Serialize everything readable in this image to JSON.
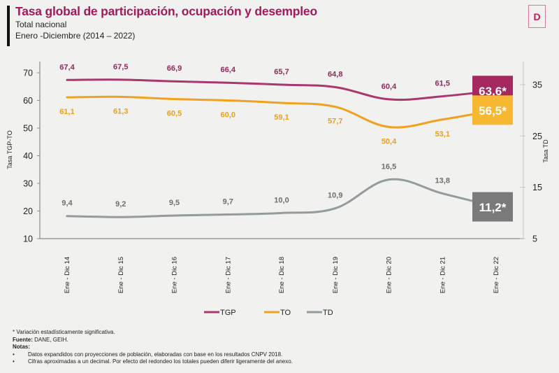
{
  "header": {
    "title": "Tasa global de participación, ocupación y desempleo",
    "subtitle_1": "Total nacional",
    "subtitle_2": "Enero -Diciembre (2014 – 2022)",
    "logo_letter": "D",
    "logo_icon": "dane-logo-icon"
  },
  "colors": {
    "TGP": "#a8386e",
    "TO": "#f0a21e",
    "TD": "#939c9b",
    "box_TGP": "#a5285f",
    "box_TO": "#f7b731",
    "box_TD": "#7a7a7a",
    "title": "#a3195b"
  },
  "chart_data": {
    "type": "line",
    "title": "Tasa global de participación, ocupación y desempleo",
    "categories": [
      "Ene - Dic 14",
      "Ene - Dic 15",
      "Ene - Dic 16",
      "Ene - Dic 17",
      "Ene - Dic 18",
      "Ene - Dic 19",
      "Ene - Dic 20",
      "Ene - Dic 21",
      "Ene - Dic 22"
    ],
    "series": [
      {
        "name": "TGP",
        "axis": "left",
        "values": [
          67.4,
          67.5,
          66.9,
          66.4,
          65.7,
          64.8,
          60.4,
          61.5,
          63.6
        ],
        "labels": [
          "67,4",
          "67,5",
          "66,9",
          "66,4",
          "65,7",
          "64,8",
          "60,4",
          "61,5",
          "63,6*"
        ]
      },
      {
        "name": "TO",
        "axis": "left",
        "values": [
          61.1,
          61.3,
          60.5,
          60.0,
          59.1,
          57.7,
          50.4,
          53.1,
          56.5
        ],
        "labels": [
          "61,1",
          "61,3",
          "60,5",
          "60,0",
          "59,1",
          "57,7",
          "50,4",
          "53,1",
          "56,5*"
        ]
      },
      {
        "name": "TD",
        "axis": "right",
        "values": [
          9.4,
          9.2,
          9.5,
          9.7,
          10.0,
          10.9,
          16.5,
          13.8,
          11.2
        ],
        "labels": [
          "9,4",
          "9,2",
          "9,5",
          "9,7",
          "10,0",
          "10,9",
          "16,5",
          "13,8",
          "11,2*"
        ]
      }
    ],
    "ylabel": "Tasa TGP-TO",
    "ylim": [
      10,
      70
    ],
    "yticks": [
      "10",
      "20",
      "30",
      "40",
      "50",
      "60",
      "70"
    ],
    "y2label": "Tasa TD",
    "y2lim": [
      5,
      35
    ],
    "y2ticks": [
      "5",
      "15",
      "25",
      "35"
    ],
    "grid": false,
    "legend": [
      "TGP",
      "TO",
      "TD"
    ],
    "legend_position": "bottom-center"
  },
  "footer": {
    "note_significance": "* Variación estadísticamente significativa.",
    "source_label": "Fuente:",
    "source_text": " DANE, GEIH.",
    "notes_label": "Notas:",
    "bullets": [
      "Datos expandidos con proyecciones de población, elaboradas con base en los resultados CNPV 2018.",
      "Cifras aproximadas a un decimal. Por efecto del redondeo los totales pueden diferir ligeramente del anexo."
    ],
    "bullet_char": "•"
  }
}
